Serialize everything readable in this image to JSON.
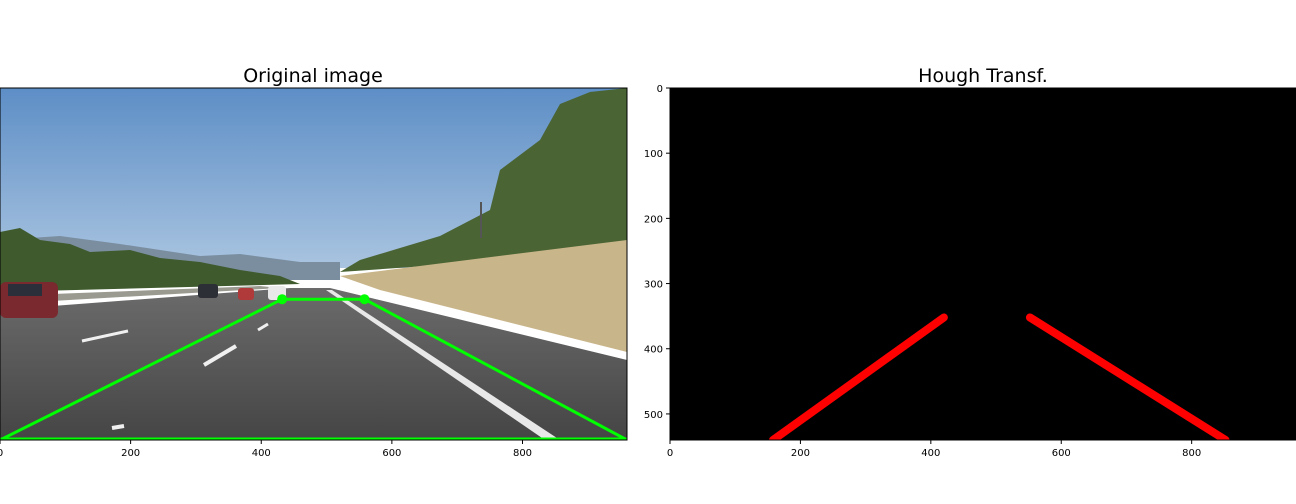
{
  "chart_data": [
    {
      "type": "image",
      "title": "Original image",
      "xlim": [
        0,
        960
      ],
      "ylim": [
        540,
        0
      ],
      "x_ticks": [
        "0",
        "200",
        "400",
        "600",
        "800"
      ],
      "y_ticks": [],
      "overlays": [
        {
          "name": "",
          "color": "#00ff00",
          "shape": "polygon",
          "points": [
            [
              0,
              540
            ],
            [
              432,
              324
            ],
            [
              558,
              324
            ],
            [
              960,
              540
            ]
          ],
          "vertex_markers": [
            [
              432,
              324
            ],
            [
              558,
              324
            ]
          ]
        }
      ]
    },
    {
      "type": "image",
      "title": "Hough Transf.",
      "xlim": [
        0,
        960
      ],
      "ylim": [
        540,
        0
      ],
      "x_ticks": [
        "0",
        "200",
        "400",
        "600",
        "800"
      ],
      "y_ticks": [
        "0",
        "100",
        "200",
        "300",
        "400",
        "500"
      ],
      "background": "#000000",
      "segments": [
        {
          "name": "",
          "color": "#ff0000",
          "x": [
            158,
            420
          ],
          "y": [
            540,
            352
          ]
        },
        {
          "name": "",
          "color": "#ff0000",
          "x": [
            552,
            852
          ],
          "y": [
            352,
            540
          ]
        }
      ]
    }
  ]
}
